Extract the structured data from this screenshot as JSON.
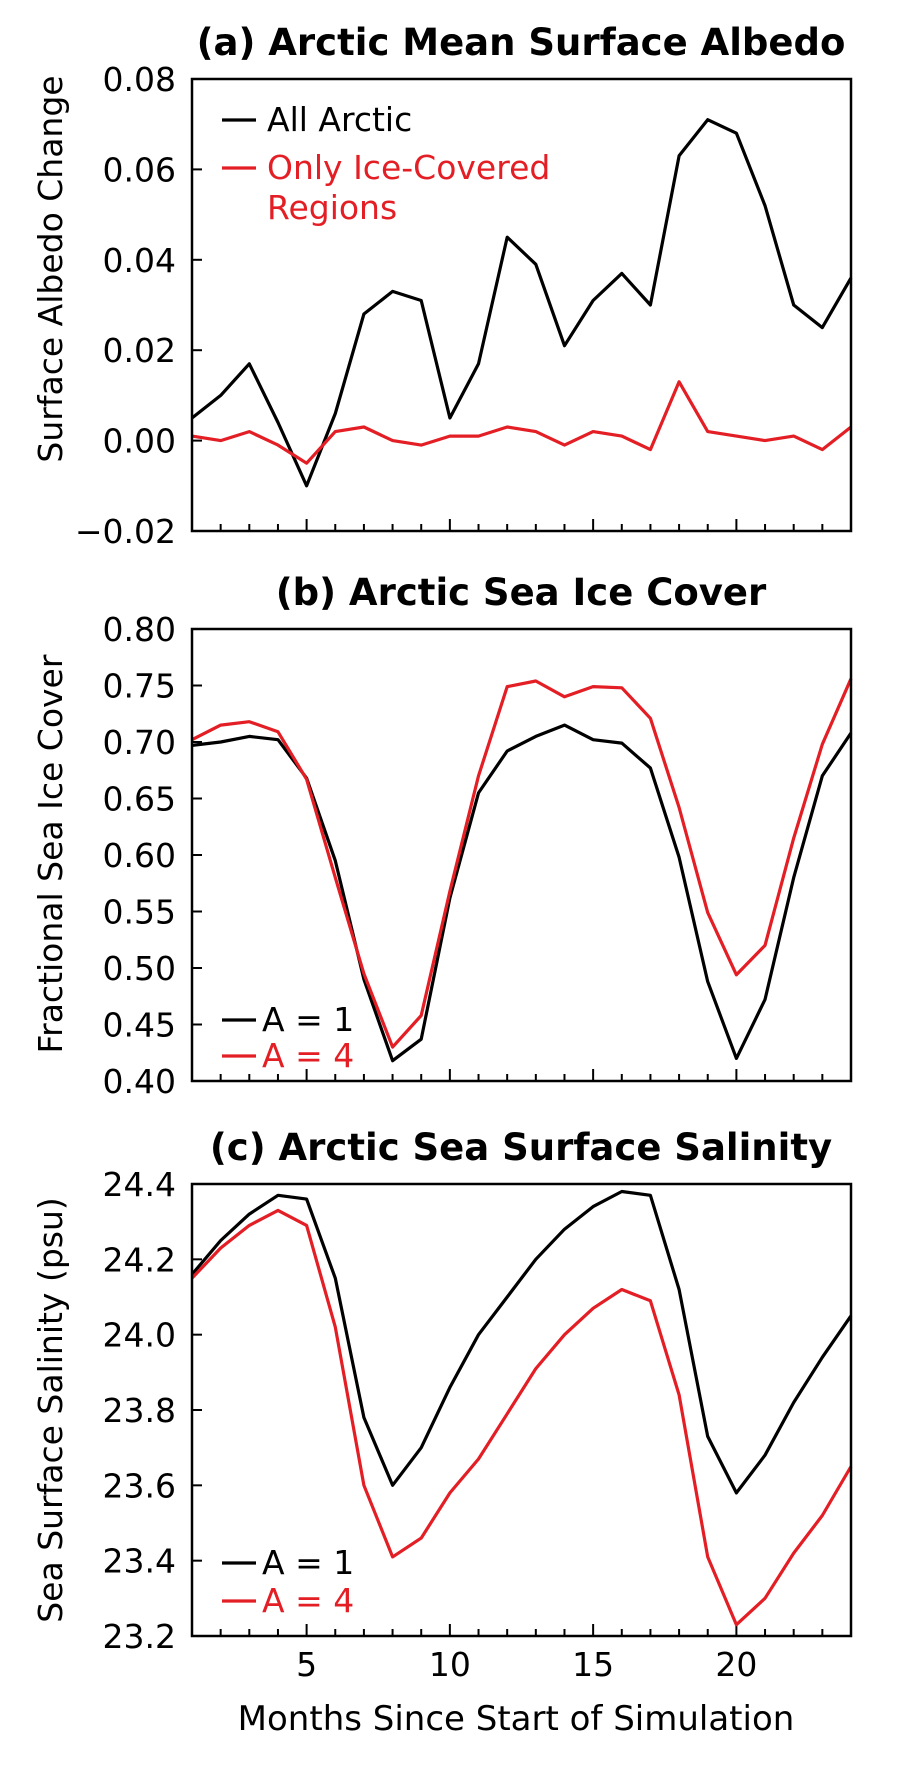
{
  "chart_data": [
    {
      "type": "line",
      "title": "(a) Arctic Mean Surface Albedo",
      "ylabel": "Surface Albedo Change",
      "xlabel": "",
      "xlim": [
        1,
        24
      ],
      "ylim": [
        -0.02,
        0.08
      ],
      "yticks": [
        "0.08",
        "0.06",
        "0.04",
        "0.02",
        "0.00",
        "−0.02"
      ],
      "ytick_values": [
        0.08,
        0.06,
        0.04,
        0.02,
        0.0,
        -0.02
      ],
      "xticks": [
        "",
        "",
        "",
        ""
      ],
      "xtick_values": [
        5,
        10,
        15,
        20
      ],
      "x": [
        1,
        2,
        3,
        4,
        5,
        6,
        7,
        8,
        9,
        10,
        11,
        12,
        13,
        14,
        15,
        16,
        17,
        18,
        19,
        20,
        21,
        22,
        23,
        24
      ],
      "legend_position": "top-left",
      "series": [
        {
          "name": "All Arctic",
          "color": "#000000",
          "values": [
            0.005,
            0.01,
            0.017,
            0.004,
            -0.01,
            0.006,
            0.028,
            0.033,
            0.031,
            0.005,
            0.017,
            0.045,
            0.039,
            0.021,
            0.031,
            0.037,
            0.03,
            0.063,
            0.071,
            0.068,
            0.052,
            0.03,
            0.025,
            0.036
          ]
        },
        {
          "name": "Only Ice-Covered\nRegions",
          "color": "#e31e24",
          "values": [
            0.001,
            0.0,
            0.002,
            -0.001,
            -0.005,
            0.002,
            0.003,
            0.0,
            -0.001,
            0.001,
            0.001,
            0.003,
            0.002,
            -0.001,
            0.002,
            0.001,
            -0.002,
            0.013,
            0.002,
            0.001,
            0.0,
            0.001,
            -0.002,
            0.003
          ]
        }
      ]
    },
    {
      "type": "line",
      "title": "(b) Arctic Sea Ice Cover",
      "ylabel": "Fractional Sea Ice Cover",
      "xlabel": "",
      "xlim": [
        1,
        24
      ],
      "ylim": [
        0.4,
        0.8
      ],
      "yticks": [
        "0.80",
        "0.75",
        "0.70",
        "0.65",
        "0.60",
        "0.55",
        "0.50",
        "0.45",
        "0.40"
      ],
      "ytick_values": [
        0.8,
        0.75,
        0.7,
        0.65,
        0.6,
        0.55,
        0.5,
        0.45,
        0.4
      ],
      "xticks": [
        "",
        "",
        "",
        ""
      ],
      "xtick_values": [
        5,
        10,
        15,
        20
      ],
      "x": [
        1,
        2,
        3,
        4,
        5,
        6,
        7,
        8,
        9,
        10,
        11,
        12,
        13,
        14,
        15,
        16,
        17,
        18,
        19,
        20,
        21,
        22,
        23,
        24
      ],
      "legend_position": "bottom-left",
      "series": [
        {
          "name": "A = 1",
          "color": "#000000",
          "values": [
            0.697,
            0.7,
            0.705,
            0.702,
            0.668,
            0.595,
            0.49,
            0.418,
            0.437,
            0.562,
            0.655,
            0.692,
            0.705,
            0.715,
            0.702,
            0.699,
            0.677,
            0.598,
            0.488,
            0.42,
            0.472,
            0.58,
            0.67,
            0.708
          ]
        },
        {
          "name": "A = 4",
          "color": "#e31e24",
          "values": [
            0.702,
            0.715,
            0.718,
            0.709,
            0.667,
            0.58,
            0.495,
            0.43,
            0.458,
            0.568,
            0.67,
            0.749,
            0.754,
            0.74,
            0.749,
            0.748,
            0.721,
            0.642,
            0.549,
            0.494,
            0.52,
            0.615,
            0.698,
            0.756
          ]
        }
      ]
    },
    {
      "type": "line",
      "title": "(c) Arctic Sea Surface Salinity",
      "ylabel": "Sea Surface Salinity (psu)",
      "xlabel": "Months Since Start of Simulation",
      "xlim": [
        1,
        24
      ],
      "ylim": [
        23.2,
        24.4
      ],
      "yticks": [
        "24.4",
        "24.2",
        "24.0",
        "23.8",
        "23.6",
        "23.4",
        "23.2"
      ],
      "ytick_values": [
        24.4,
        24.2,
        24.0,
        23.8,
        23.6,
        23.4,
        23.2
      ],
      "xticks": [
        "5",
        "10",
        "15",
        "20"
      ],
      "xtick_values": [
        5,
        10,
        15,
        20
      ],
      "x": [
        1,
        2,
        3,
        4,
        5,
        6,
        7,
        8,
        9,
        10,
        11,
        12,
        13,
        14,
        15,
        16,
        17,
        18,
        19,
        20,
        21,
        22,
        23,
        24
      ],
      "legend_position": "bottom-left",
      "series": [
        {
          "name": "A = 1",
          "color": "#000000",
          "values": [
            24.16,
            24.25,
            24.32,
            24.37,
            24.36,
            24.15,
            23.78,
            23.6,
            23.7,
            23.86,
            24.0,
            24.1,
            24.2,
            24.28,
            24.34,
            24.38,
            24.37,
            24.12,
            23.73,
            23.58,
            23.68,
            23.82,
            23.94,
            24.05
          ]
        },
        {
          "name": "A = 4",
          "color": "#e31e24",
          "values": [
            24.15,
            24.23,
            24.29,
            24.33,
            24.29,
            24.02,
            23.6,
            23.41,
            23.46,
            23.58,
            23.67,
            23.79,
            23.91,
            24.0,
            24.07,
            24.12,
            24.09,
            23.84,
            23.41,
            23.23,
            23.3,
            23.42,
            23.52,
            23.65
          ]
        }
      ]
    }
  ]
}
